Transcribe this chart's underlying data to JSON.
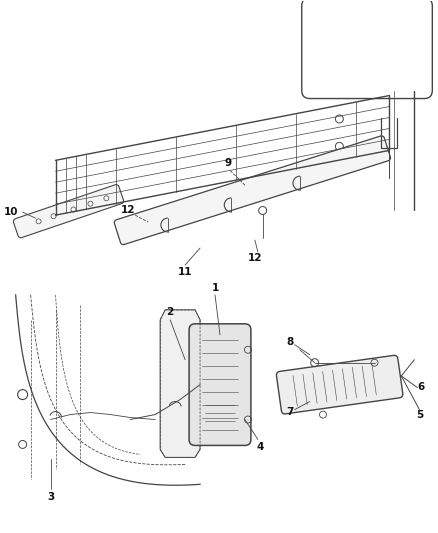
{
  "background_color": "#ffffff",
  "line_color": "#444444",
  "label_color": "#111111",
  "fig_width": 4.38,
  "fig_height": 5.33,
  "dpi": 100
}
